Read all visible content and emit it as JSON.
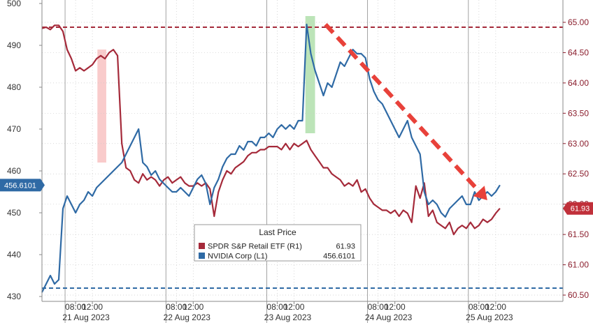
{
  "chart_data": {
    "type": "line",
    "left_axis": {
      "ylim": [
        430,
        500
      ],
      "ticks": [
        430,
        440,
        450,
        460,
        470,
        480,
        490,
        500
      ]
    },
    "right_axis": {
      "ylim": [
        60.5,
        65.0
      ],
      "ticks": [
        "60.50",
        "61.00",
        "61.50",
        "62.00",
        "62.50",
        "63.00",
        "63.50",
        "64.00",
        "64.50",
        "65.00"
      ]
    },
    "x_axis": {
      "range": [
        0,
        124
      ],
      "time_ticks": [
        {
          "x": 8,
          "label": "08:00"
        },
        {
          "x": 12,
          "label": "12:00"
        },
        {
          "x": 32,
          "label": "08:00"
        },
        {
          "x": 36,
          "label": "12:00"
        },
        {
          "x": 56,
          "label": "08:00"
        },
        {
          "x": 60,
          "label": "12:00"
        },
        {
          "x": 80,
          "label": "08:00"
        },
        {
          "x": 84,
          "label": "12:00"
        },
        {
          "x": 104,
          "label": "08:00"
        },
        {
          "x": 108,
          "label": "12:00"
        }
      ],
      "day_labels": [
        {
          "x": 10.5,
          "label": "21 Aug 2023"
        },
        {
          "x": 34.5,
          "label": "22 Aug 2023"
        },
        {
          "x": 58.5,
          "label": "23 Aug 2023"
        },
        {
          "x": 82.5,
          "label": "24 Aug 2023"
        },
        {
          "x": 106.5,
          "label": "25 Aug 2023"
        }
      ],
      "day_separators": [
        5.5,
        29.5,
        53.5,
        77.5,
        101.5
      ]
    },
    "legend": {
      "title": "Last Price",
      "position": "bottom-center",
      "entries": [
        {
          "name": "SPDR S&P Retail ETF  (R1)",
          "value": "61.93",
          "color": "#a52a3a"
        },
        {
          "name": "NVIDIA Corp  (L1)",
          "value": "456.6101",
          "color": "#2f6aa5"
        }
      ]
    },
    "last_value_tags": [
      {
        "axis": "left",
        "value": 456.61,
        "label": "456.6101",
        "color": "#2f6aa5"
      },
      {
        "axis": "right",
        "value": 61.93,
        "label": "61.93",
        "color": "#c0303a"
      }
    ],
    "reference_lines": [
      {
        "axis": "right",
        "value": 64.92,
        "color": "#a52a3a",
        "style": "dashed"
      },
      {
        "axis": "left",
        "value": 432,
        "color": "#2f6aa5",
        "style": "dashed"
      }
    ],
    "highlights": [
      {
        "x0": 13.2,
        "x1": 15.3,
        "color": "#f4a0a0"
      },
      {
        "x0": 62.7,
        "x1": 65.0,
        "color": "#9fd89a"
      }
    ],
    "annotation_arrow": {
      "from": [
        67.5,
        495
      ],
      "to": [
        106,
        453
      ],
      "color": "#e8413a"
    },
    "series": [
      {
        "name": "SPDR S&P Retail ETF",
        "axis": "right",
        "color": "#a52a3a",
        "x": [
          0,
          1,
          2,
          3,
          4,
          5,
          6,
          7,
          8,
          9,
          10,
          11,
          12,
          13,
          14,
          15,
          16,
          17,
          18,
          19,
          20,
          21,
          22,
          23,
          24,
          25,
          26,
          27,
          28,
          29,
          30,
          31,
          32,
          33,
          34,
          35,
          36,
          37,
          38,
          39,
          40,
          41,
          42,
          43,
          44,
          45,
          46,
          47,
          48,
          49,
          50,
          51,
          52,
          53,
          54,
          55,
          56,
          57,
          58,
          59,
          60,
          61,
          62,
          63,
          64,
          65,
          66,
          67,
          68,
          69,
          70,
          71,
          72,
          73,
          74,
          75,
          76,
          77,
          78,
          79,
          80,
          81,
          82,
          83,
          84,
          85,
          86,
          87,
          88,
          89,
          90,
          91,
          92,
          93,
          94,
          95,
          96,
          97,
          98,
          99,
          100,
          101,
          102,
          103,
          104,
          105,
          106,
          107,
          108,
          109
        ],
        "y": [
          64.9,
          64.92,
          64.88,
          64.95,
          64.95,
          64.85,
          64.55,
          64.4,
          64.2,
          64.25,
          64.2,
          64.25,
          64.3,
          64.4,
          64.45,
          64.4,
          64.5,
          64.55,
          64.45,
          63.0,
          62.6,
          62.55,
          62.4,
          62.35,
          62.5,
          62.4,
          62.45,
          62.4,
          62.3,
          62.4,
          62.45,
          62.35,
          62.4,
          62.45,
          62.35,
          62.3,
          62.3,
          62.35,
          62.3,
          62.35,
          62.25,
          61.8,
          62.2,
          62.4,
          62.55,
          62.5,
          62.6,
          62.65,
          62.7,
          62.8,
          62.85,
          62.85,
          62.9,
          62.9,
          62.95,
          62.95,
          62.95,
          62.9,
          63.0,
          62.9,
          63.0,
          62.95,
          63.0,
          63.05,
          62.9,
          62.8,
          62.7,
          62.6,
          62.6,
          62.5,
          62.45,
          62.4,
          62.3,
          62.35,
          62.3,
          62.4,
          62.2,
          62.25,
          62.1,
          62.0,
          61.95,
          61.9,
          61.9,
          61.85,
          61.9,
          61.8,
          61.9,
          61.85,
          61.7,
          62.3,
          62.1,
          62.35,
          61.8,
          61.9,
          61.7,
          61.65,
          61.6,
          61.7,
          61.5,
          61.6,
          61.65,
          61.6,
          61.7,
          61.6,
          61.65,
          61.75,
          61.7,
          61.75,
          61.85,
          61.93
        ]
      },
      {
        "name": "NVIDIA Corp",
        "axis": "left",
        "color": "#2f6aa5",
        "x": [
          0,
          1,
          2,
          3,
          4,
          5,
          6,
          7,
          8,
          9,
          10,
          11,
          12,
          13,
          14,
          15,
          16,
          17,
          18,
          19,
          20,
          21,
          22,
          23,
          24,
          25,
          26,
          27,
          28,
          29,
          30,
          31,
          32,
          33,
          34,
          35,
          36,
          37,
          38,
          39,
          40,
          41,
          42,
          43,
          44,
          45,
          46,
          47,
          48,
          49,
          50,
          51,
          52,
          53,
          54,
          55,
          56,
          57,
          58,
          59,
          60,
          61,
          62,
          63,
          64,
          65,
          66,
          67,
          68,
          69,
          70,
          71,
          72,
          73,
          74,
          75,
          76,
          77,
          78,
          79,
          80,
          81,
          82,
          83,
          84,
          85,
          86,
          87,
          88,
          89,
          90,
          91,
          92,
          93,
          94,
          95,
          96,
          97,
          98,
          99,
          100,
          101,
          102,
          103,
          104,
          105,
          106,
          107,
          108,
          109
        ],
        "y": [
          431,
          433,
          435,
          433,
          434,
          451,
          454,
          452,
          450,
          452,
          453,
          455,
          454,
          456,
          457,
          458,
          459,
          460,
          461,
          462,
          464,
          466,
          468,
          470,
          462,
          461,
          459,
          460,
          458,
          457,
          456,
          455,
          455,
          456,
          455,
          454,
          456,
          458,
          459,
          457,
          452,
          456,
          458,
          461,
          463,
          464,
          464,
          466,
          465,
          467,
          467,
          466,
          468,
          468,
          469,
          468,
          470,
          471,
          470,
          471,
          470,
          472,
          472,
          495,
          488,
          484,
          481,
          478,
          481,
          480,
          483,
          486,
          485,
          487,
          489,
          488,
          488,
          487,
          482,
          479,
          477,
          476,
          474,
          472,
          470,
          468,
          470,
          472,
          468,
          466,
          464,
          455,
          452,
          453,
          452,
          450,
          449,
          451,
          452,
          453,
          454,
          452,
          452,
          455,
          453,
          454,
          455,
          454,
          455,
          456.61
        ]
      }
    ]
  }
}
